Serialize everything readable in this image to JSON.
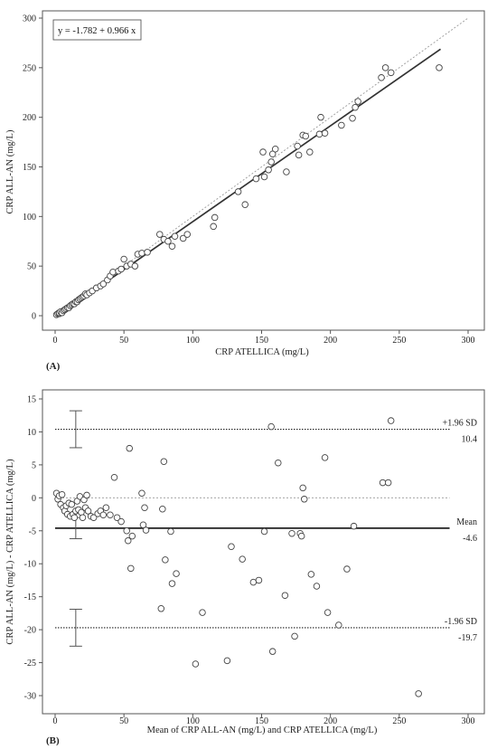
{
  "chart_data": [
    {
      "type": "scatter",
      "panel_label": "(A)",
      "xlabel": "CRP ATELLICA (mg/L)",
      "ylabel": "CRP ALL-AN (mg/L)",
      "xlim": [
        0,
        300
      ],
      "ylim": [
        0,
        300
      ],
      "xticks": [
        0,
        50,
        100,
        150,
        200,
        250,
        300
      ],
      "yticks": [
        0,
        50,
        100,
        150,
        200,
        250,
        300
      ],
      "equation": "y = -1.782 + 0.966 x",
      "regression": {
        "intercept": -1.782,
        "slope": 0.966,
        "x_range": [
          0,
          280
        ]
      },
      "identity_line": true,
      "points": [
        [
          1,
          1
        ],
        [
          2,
          2
        ],
        [
          3,
          2
        ],
        [
          3,
          3
        ],
        [
          4,
          4
        ],
        [
          5,
          3
        ],
        [
          6,
          5
        ],
        [
          7,
          6
        ],
        [
          8,
          7
        ],
        [
          9,
          8
        ],
        [
          10,
          8
        ],
        [
          11,
          10
        ],
        [
          12,
          11
        ],
        [
          13,
          12
        ],
        [
          14,
          12
        ],
        [
          15,
          14
        ],
        [
          16,
          14
        ],
        [
          17,
          16
        ],
        [
          18,
          17
        ],
        [
          19,
          18
        ],
        [
          20,
          19
        ],
        [
          21,
          20
        ],
        [
          22,
          22
        ],
        [
          23,
          21
        ],
        [
          25,
          23
        ],
        [
          27,
          25
        ],
        [
          30,
          28
        ],
        [
          33,
          30
        ],
        [
          35,
          32
        ],
        [
          38,
          36
        ],
        [
          40,
          40
        ],
        [
          42,
          44
        ],
        [
          46,
          45
        ],
        [
          48,
          47
        ],
        [
          50,
          57
        ],
        [
          52,
          50
        ],
        [
          55,
          52
        ],
        [
          58,
          50
        ],
        [
          60,
          62
        ],
        [
          63,
          63
        ],
        [
          67,
          64
        ],
        [
          76,
          82
        ],
        [
          79,
          77
        ],
        [
          82,
          75
        ],
        [
          85,
          70
        ],
        [
          87,
          80
        ],
        [
          93,
          78
        ],
        [
          96,
          82
        ],
        [
          115,
          90
        ],
        [
          116,
          99
        ],
        [
          133,
          125
        ],
        [
          138,
          112
        ],
        [
          146,
          138
        ],
        [
          151,
          165
        ],
        [
          152,
          140
        ],
        [
          155,
          147
        ],
        [
          157,
          155
        ],
        [
          158,
          163
        ],
        [
          160,
          168
        ],
        [
          168,
          145
        ],
        [
          176,
          171
        ],
        [
          177,
          162
        ],
        [
          180,
          182
        ],
        [
          182,
          181
        ],
        [
          185,
          165
        ],
        [
          192,
          183
        ],
        [
          193,
          200
        ],
        [
          196,
          184
        ],
        [
          208,
          192
        ],
        [
          216,
          199
        ],
        [
          218,
          210
        ],
        [
          220,
          216
        ],
        [
          237,
          240
        ],
        [
          240,
          250
        ],
        [
          244,
          245
        ],
        [
          279,
          250
        ]
      ]
    },
    {
      "type": "scatter",
      "panel_label": "(B)",
      "xlabel": "Mean of CRP ALL-AN (mg/L) and CRP ATELLICA (mg/L)",
      "ylabel": "CRP ALL-AN (mg/L) - CRP ATELLICA (mg/L)",
      "xlim": [
        0,
        300
      ],
      "ylim": [
        -30,
        15
      ],
      "xticks": [
        0,
        50,
        100,
        150,
        200,
        250,
        300
      ],
      "yticks": [
        -30,
        -25,
        -20,
        -15,
        -10,
        -5,
        0,
        5,
        10,
        15
      ],
      "mean": -4.6,
      "upper_loa": 10.4,
      "lower_loa": -19.7,
      "zero_line": true,
      "labels": {
        "upper_name": "+1.96 SD",
        "upper_value": "10.4",
        "mean_name": "Mean",
        "mean_value": "-4.6",
        "lower_name": "-1.96 SD",
        "lower_value": "-19.7"
      },
      "ci_bars": [
        {
          "center": 10.4,
          "low": 7.6,
          "high": 13.2
        },
        {
          "center": -4.6,
          "low": -6.2,
          "high": -3.0
        },
        {
          "center": -19.7,
          "low": -22.5,
          "high": -16.9
        }
      ],
      "points": [
        [
          1,
          0.7
        ],
        [
          2,
          -0.2
        ],
        [
          3,
          0.3
        ],
        [
          4,
          -1.0
        ],
        [
          5,
          0.5
        ],
        [
          6,
          -1.5
        ],
        [
          7,
          -2.0
        ],
        [
          8,
          -1.2
        ],
        [
          9,
          -2.5
        ],
        [
          10,
          -0.8
        ],
        [
          11,
          -2.8
        ],
        [
          12,
          -1.0
        ],
        [
          13,
          -2.5
        ],
        [
          14,
          -3.0
        ],
        [
          15,
          -2.0
        ],
        [
          16,
          -0.5
        ],
        [
          17,
          -1.8
        ],
        [
          18,
          0.2
        ],
        [
          19,
          -2.2
        ],
        [
          20,
          -3.0
        ],
        [
          21,
          -0.3
        ],
        [
          22,
          -1.5
        ],
        [
          23,
          0.4
        ],
        [
          24,
          -2.0
        ],
        [
          26,
          -2.8
        ],
        [
          28,
          -3.0
        ],
        [
          31,
          -2.4
        ],
        [
          33,
          -2.0
        ],
        [
          35,
          -2.6
        ],
        [
          37,
          -1.5
        ],
        [
          40,
          -2.6
        ],
        [
          43,
          3.1
        ],
        [
          45,
          -3.0
        ],
        [
          48,
          -3.6
        ],
        [
          52,
          -5.0
        ],
        [
          53,
          -6.5
        ],
        [
          54,
          7.5
        ],
        [
          55,
          -10.7
        ],
        [
          56,
          -5.8
        ],
        [
          63,
          0.7
        ],
        [
          64,
          -4.1
        ],
        [
          65,
          -1.5
        ],
        [
          66,
          -4.9
        ],
        [
          77,
          -16.8
        ],
        [
          78,
          -1.7
        ],
        [
          79,
          5.5
        ],
        [
          80,
          -9.4
        ],
        [
          84,
          -5.1
        ],
        [
          85,
          -13.0
        ],
        [
          88,
          -11.5
        ],
        [
          102,
          -25.2
        ],
        [
          107,
          -17.4
        ],
        [
          125,
          -24.7
        ],
        [
          128,
          -7.4
        ],
        [
          136,
          -9.3
        ],
        [
          144,
          -12.8
        ],
        [
          148,
          -12.5
        ],
        [
          152,
          -5.1
        ],
        [
          157,
          10.8
        ],
        [
          158,
          -23.3
        ],
        [
          162,
          5.3
        ],
        [
          167,
          -14.8
        ],
        [
          172,
          -5.4
        ],
        [
          174,
          -21.0
        ],
        [
          178,
          -5.4
        ],
        [
          179,
          -5.8
        ],
        [
          180,
          1.5
        ],
        [
          181,
          -0.2
        ],
        [
          186,
          -11.6
        ],
        [
          190,
          -13.4
        ],
        [
          196,
          6.1
        ],
        [
          198,
          -17.4
        ],
        [
          206,
          -19.3
        ],
        [
          212,
          -10.8
        ],
        [
          217,
          -4.3
        ],
        [
          238,
          2.3
        ],
        [
          242,
          2.3
        ],
        [
          244,
          11.7
        ],
        [
          264,
          -29.7
        ]
      ]
    }
  ]
}
